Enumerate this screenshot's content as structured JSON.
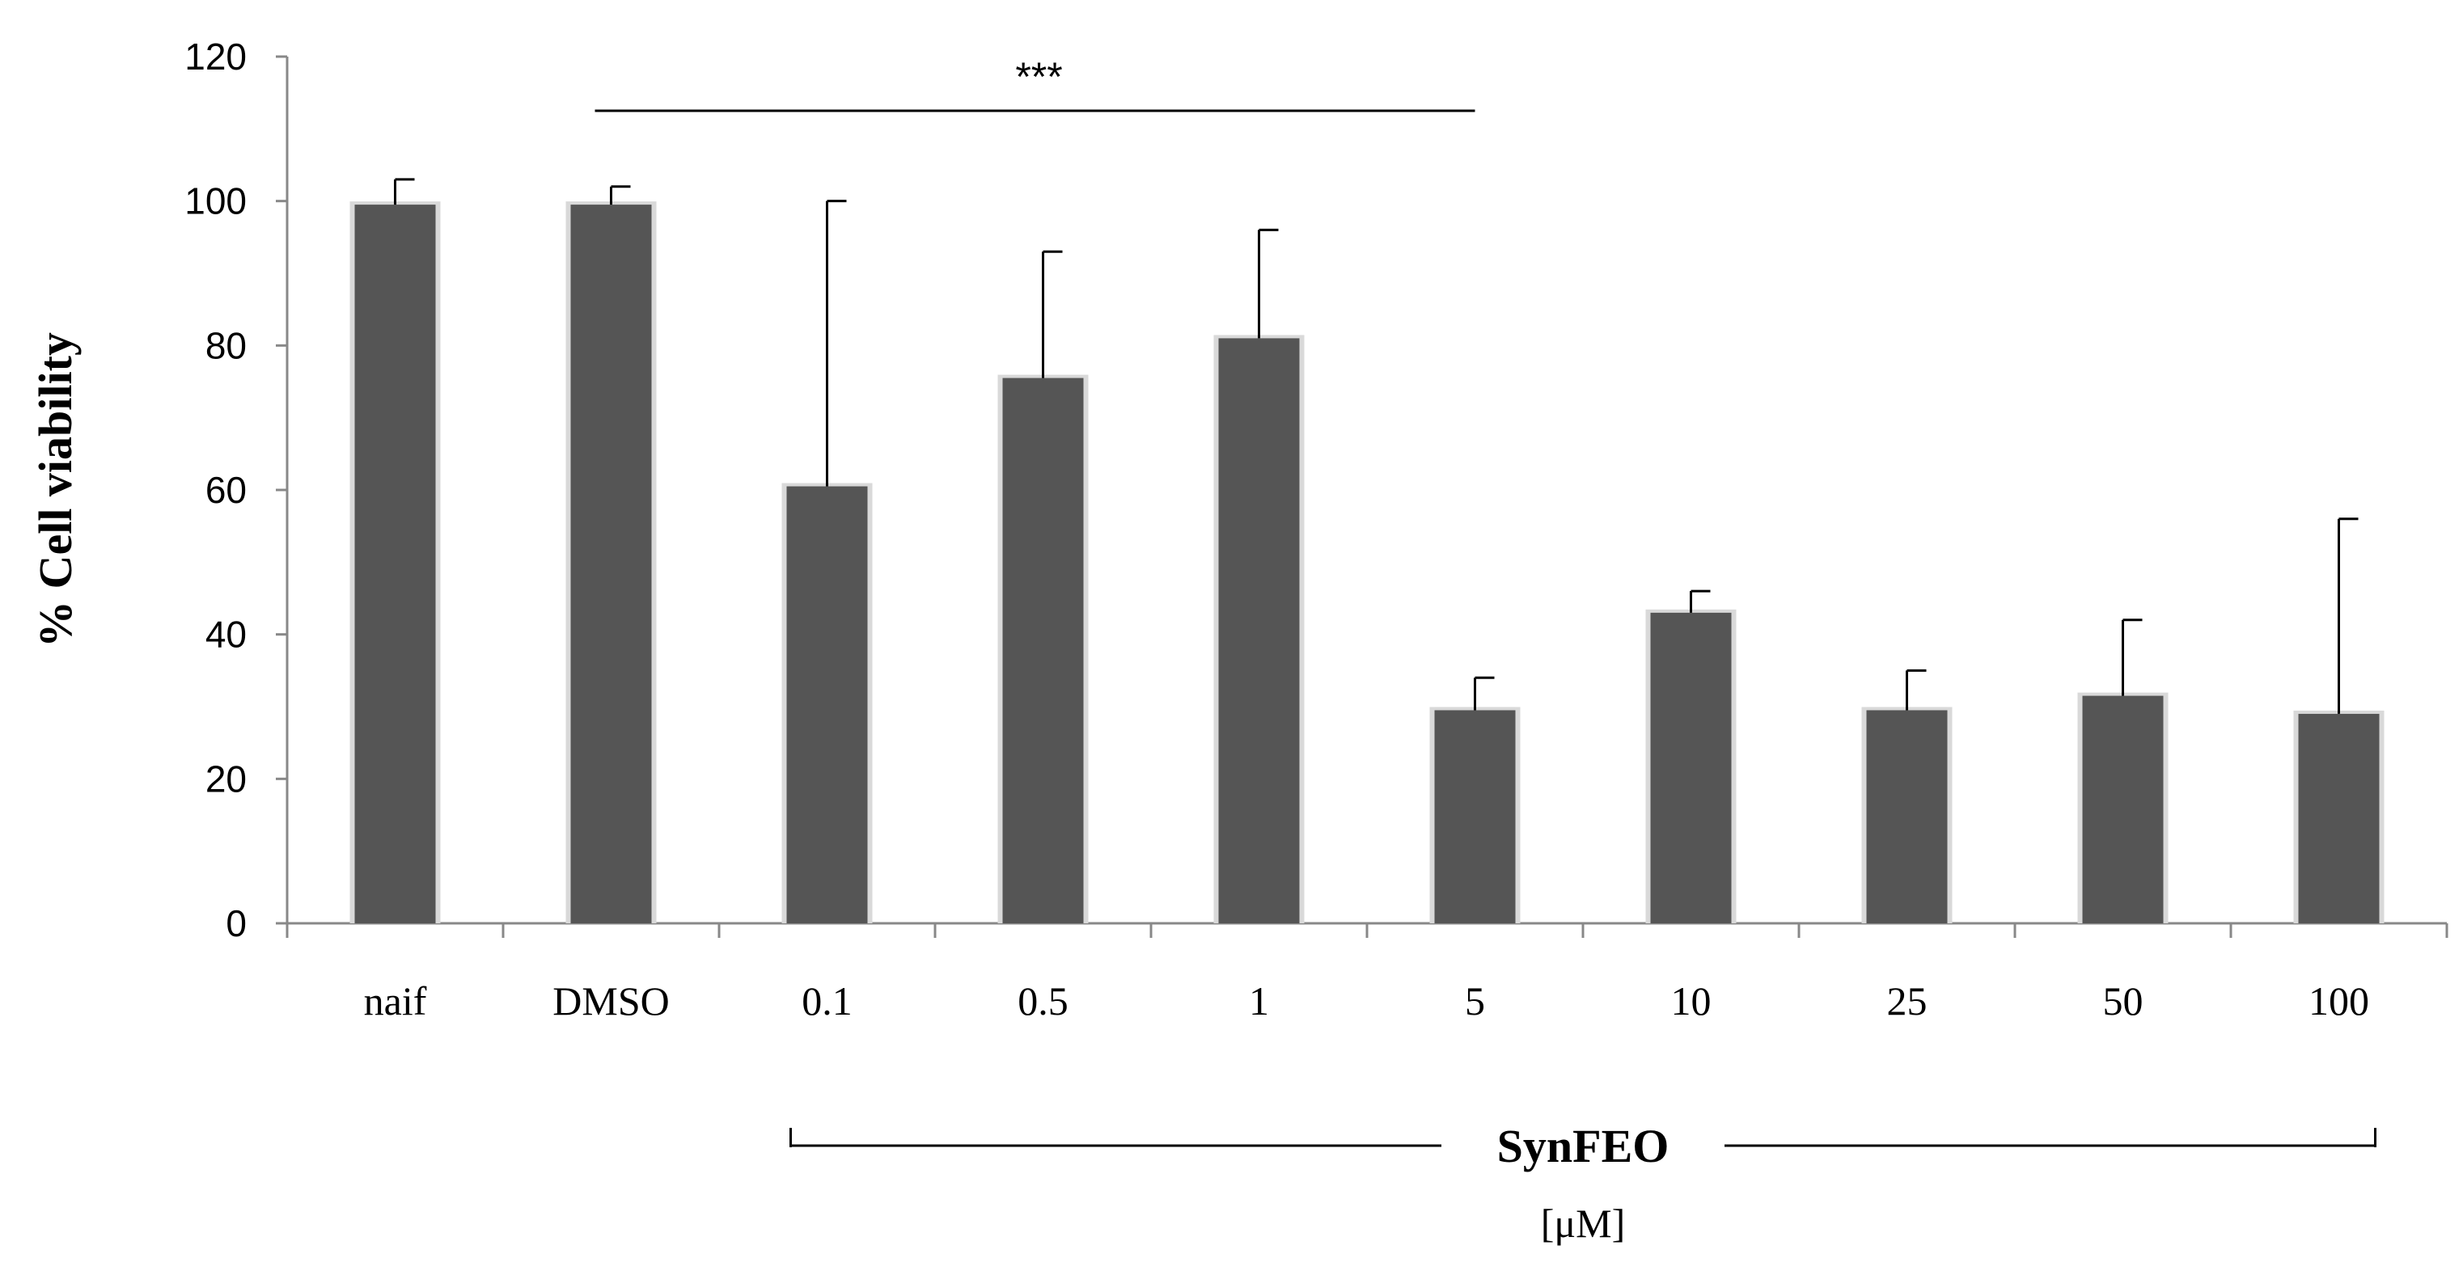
{
  "chart_data": {
    "type": "bar",
    "categories": [
      "naif",
      "DMSO",
      "0.1",
      "0.5",
      "1",
      "5",
      "10",
      "25",
      "50",
      "100"
    ],
    "values": [
      99.5,
      99.5,
      60.5,
      75.5,
      81.0,
      29.5,
      43.0,
      29.5,
      31.5,
      29.0
    ],
    "error_upper": [
      103,
      102,
      100,
      93,
      96,
      34,
      46,
      35,
      42,
      56
    ],
    "ylabel": "% Cell viability",
    "xlabel": "",
    "ylim": [
      0,
      120
    ],
    "yticks": [
      0,
      20,
      40,
      60,
      80,
      100,
      120
    ],
    "grid": false,
    "bar_color": "#555555",
    "significance": {
      "label": "***",
      "from_category": "DMSO",
      "to_category": "5"
    },
    "group": {
      "title": "SynFEO",
      "unit": "[μM]",
      "from_category": "0.1",
      "to_category": "100"
    }
  }
}
